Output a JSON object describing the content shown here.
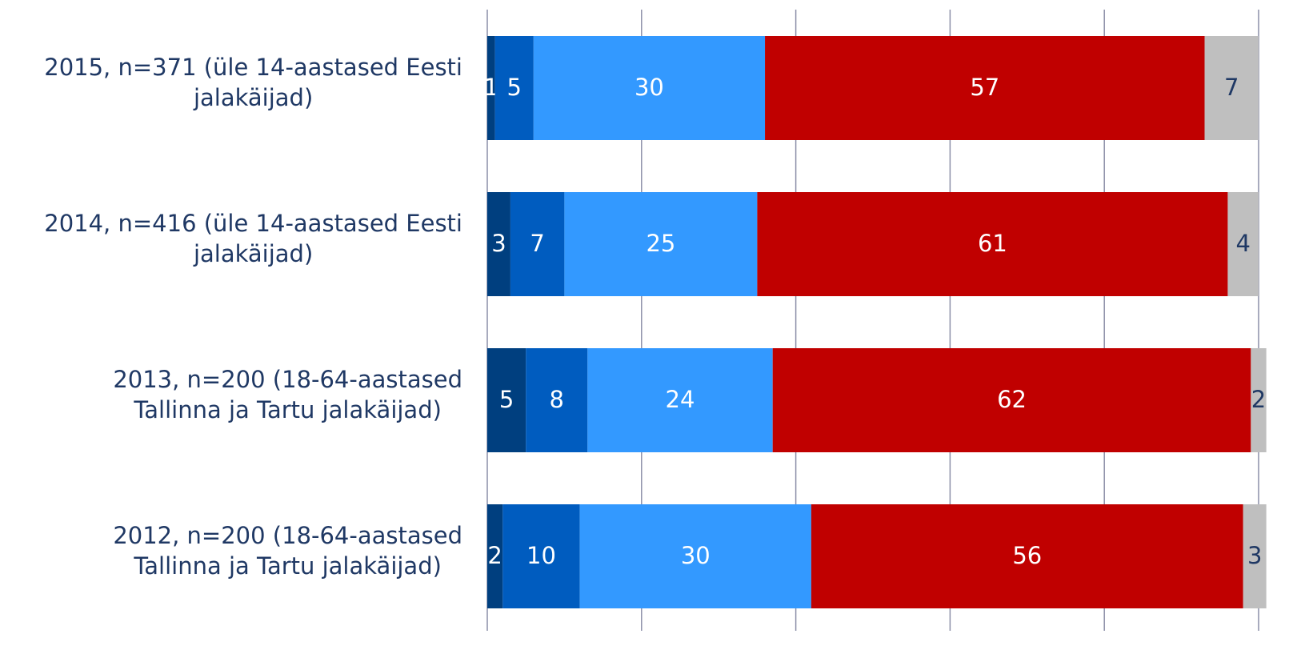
{
  "chart_data": {
    "type": "bar",
    "orientation": "horizontal",
    "stacked": true,
    "title": "",
    "xlabel": "",
    "ylabel": "",
    "xlim": [
      0,
      100
    ],
    "grid": true,
    "categories": [
      [
        "2015, n=371 (üle 14-aastased Eesti",
        "jalakäijad)"
      ],
      [
        "2014, n=416 (üle 14-aastased Eesti",
        "jalakäijad)"
      ],
      [
        "2013, n=200 (18-64-aastased",
        "Tallinna ja Tartu jalakäijad)"
      ],
      [
        "2012, n=200 (18-64-aastased",
        "Tallinna ja Tartu jalakäijad)"
      ]
    ],
    "series": [
      {
        "color": "#003f7f",
        "label_color": "#ffffff",
        "values": [
          1,
          3,
          5,
          2
        ],
        "labels": [
          "1",
          "3",
          "5",
          "2"
        ]
      },
      {
        "color": "#005cbf",
        "label_color": "#ffffff",
        "values": [
          5,
          7,
          8,
          10
        ],
        "labels": [
          "5",
          "7",
          "8",
          "10"
        ]
      },
      {
        "color": "#3399ff",
        "label_color": "#ffffff",
        "values": [
          30,
          25,
          24,
          30
        ],
        "labels": [
          "30",
          "25",
          "24",
          "30"
        ]
      },
      {
        "color": "#c00000",
        "label_color": "#ffffff",
        "values": [
          57,
          61,
          62,
          56
        ],
        "labels": [
          "57",
          "61",
          "62",
          "56"
        ]
      },
      {
        "color": "#bfbfbf",
        "label_color": "#1f3864",
        "values": [
          7,
          4,
          2,
          3
        ],
        "labels": [
          "7",
          "4",
          "2",
          "3"
        ]
      }
    ]
  }
}
